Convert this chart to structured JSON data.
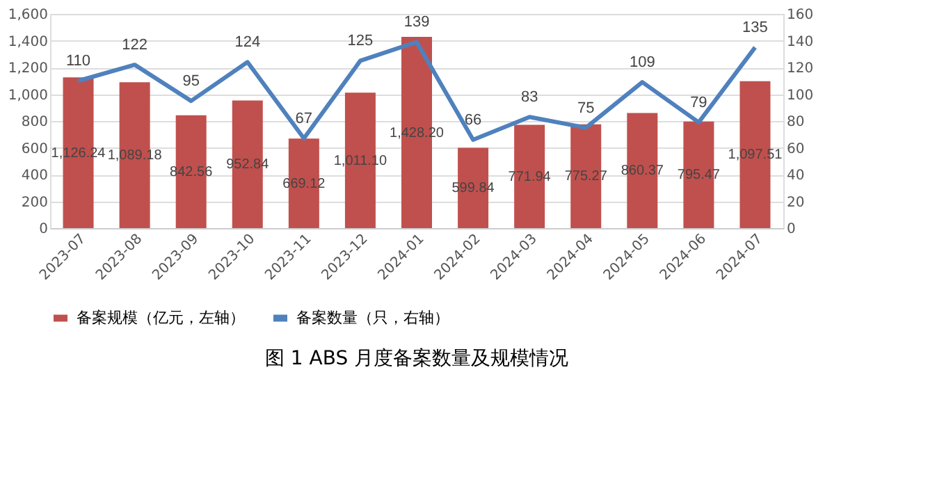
{
  "chart_data": {
    "type": "bar",
    "title": "图 1  ABS 月度备案数量及规模情况",
    "categories": [
      "2023-07",
      "2023-08",
      "2023-09",
      "2023-10",
      "2023-11",
      "2023-12",
      "2024-01",
      "2024-02",
      "2024-03",
      "2024-04",
      "2024-05",
      "2024-06",
      "2024-07"
    ],
    "series": [
      {
        "name": "备案规模（亿元，左轴）",
        "color": "#c0504d",
        "values": [
          1126.24,
          1089.18,
          842.56,
          952.84,
          669.12,
          1011.1,
          1428.2,
          599.84,
          771.94,
          775.27,
          860.37,
          795.47,
          1097.51
        ],
        "value_labels": [
          "1,126.24",
          "1,089.18",
          "842.56",
          "952.84",
          "669.12",
          "1,011.10",
          "1,428.20",
          "599.84",
          "771.94",
          "775.27",
          "860.37",
          "795.47",
          "1,097.51"
        ]
      },
      {
        "name": "备案数量（只，右轴）",
        "type": "line",
        "axis": "y2",
        "color": "#4f81bd",
        "values": [
          110,
          122,
          95,
          124,
          67,
          125,
          139,
          66,
          83,
          75,
          109,
          79,
          135
        ],
        "value_labels": [
          "110",
          "122",
          "95",
          "124",
          "67",
          "125",
          "139",
          "66",
          "83",
          "75",
          "109",
          "79",
          "135"
        ]
      }
    ],
    "ylim": [
      0,
      1600
    ],
    "yticks": [
      0,
      200,
      400,
      600,
      800,
      {
        "value": 1000,
        "label": "1,000"
      },
      {
        "value": 1200,
        "label": "1,200"
      },
      {
        "value": 1400,
        "label": "1,400"
      },
      {
        "value": 1600,
        "label": "1,600"
      }
    ],
    "y2lim": [
      0,
      160
    ],
    "y2ticks": [
      0,
      20,
      40,
      60,
      80,
      100,
      120,
      140,
      160
    ],
    "grid": "y",
    "legend": "bottom",
    "marker": "none",
    "line_style": "solid"
  }
}
